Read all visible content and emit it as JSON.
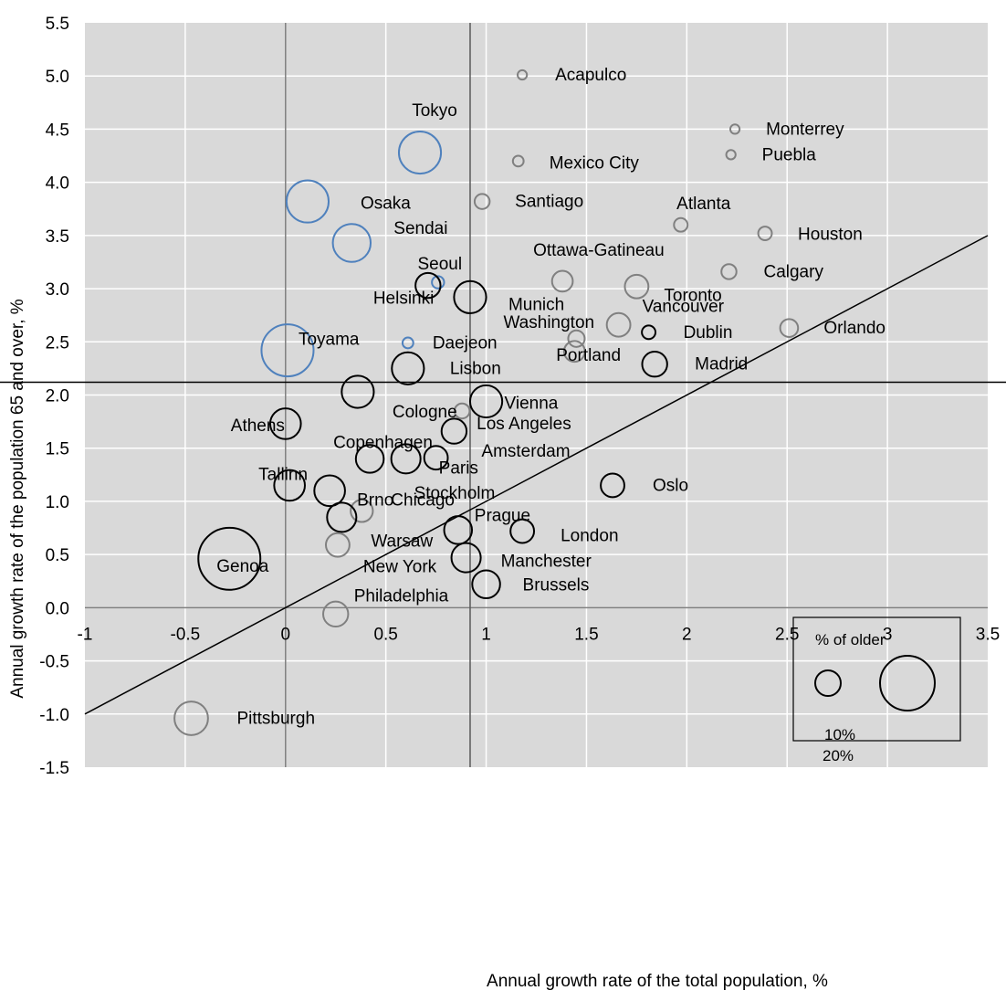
{
  "chart_data": {
    "type": "scatter",
    "subtype": "bubble",
    "xlabel": "Annual growth rate of the total population, %",
    "ylabel": "Annual growth rate of the population 65 and over, %",
    "xlim": [
      -1,
      3.5
    ],
    "ylim": [
      -1.5,
      5.5
    ],
    "x_ticks": [
      "-1",
      "-0.5",
      "0",
      "0.5",
      "1",
      "1.5",
      "2",
      "2.5",
      "3",
      "3.5"
    ],
    "y_ticks": [
      "-1.5",
      "-1.0",
      "-0.5",
      "0.0",
      "0.5",
      "1.0",
      "1.5",
      "2.0",
      "2.5",
      "3.0",
      "3.5",
      "4.0",
      "4.5",
      "5.0",
      "5.5"
    ],
    "grid": true,
    "background": "#d9d9d9",
    "reference_lines": {
      "vertical_x": 0.92,
      "horizontal_y": 2.12,
      "diagonal": "y = x"
    },
    "colors": {
      "blue": "#4f81bd",
      "grey": "#808080",
      "black": "#000000"
    },
    "legend": {
      "title": "% of older",
      "entries": [
        "10%",
        "20%"
      ],
      "placement": "bottom-right"
    },
    "points": [
      {
        "name": "Acapulco",
        "x": 1.18,
        "y": 5.01,
        "size": 4,
        "color": "grey"
      },
      {
        "name": "Monterrey",
        "x": 2.24,
        "y": 4.5,
        "size": 4,
        "color": "grey"
      },
      {
        "name": "Puebla",
        "x": 2.22,
        "y": 4.26,
        "size": 4,
        "color": "grey"
      },
      {
        "name": "Mexico City",
        "x": 1.16,
        "y": 4.2,
        "size": 5,
        "color": "grey"
      },
      {
        "name": "Tokyo",
        "x": 0.67,
        "y": 4.28,
        "size": 27,
        "color": "blue"
      },
      {
        "name": "Osaka",
        "x": 0.11,
        "y": 3.82,
        "size": 27,
        "color": "blue"
      },
      {
        "name": "Santiago",
        "x": 0.98,
        "y": 3.82,
        "size": 8,
        "color": "grey"
      },
      {
        "name": "Atlanta",
        "x": 1.97,
        "y": 3.6,
        "size": 7,
        "color": "grey"
      },
      {
        "name": "Houston",
        "x": 2.39,
        "y": 3.52,
        "size": 7,
        "color": "grey"
      },
      {
        "name": "Sendai",
        "x": 0.33,
        "y": 3.43,
        "size": 24,
        "color": "blue"
      },
      {
        "name": "Seoul",
        "x": 0.76,
        "y": 3.06,
        "size": 6,
        "color": "blue"
      },
      {
        "name": "Ottawa-Gatineau",
        "x": 1.38,
        "y": 3.07,
        "size": 12,
        "color": "grey"
      },
      {
        "name": "Calgary",
        "x": 2.21,
        "y": 3.16,
        "size": 8,
        "color": "grey"
      },
      {
        "name": "Toronto",
        "x": 1.75,
        "y": 3.02,
        "size": 14,
        "color": "grey"
      },
      {
        "name": "Helsinki",
        "x": 0.71,
        "y": 3.03,
        "size": 15,
        "color": "black"
      },
      {
        "name": "Munich",
        "x": 0.92,
        "y": 2.92,
        "size": 20,
        "color": "black"
      },
      {
        "name": "Toyama",
        "x": 0.01,
        "y": 2.42,
        "size": 34,
        "color": "blue"
      },
      {
        "name": "Vancouver",
        "x": 1.66,
        "y": 2.66,
        "size": 14,
        "color": "grey"
      },
      {
        "name": "Washington",
        "x": 1.45,
        "y": 2.53,
        "size": 9,
        "color": "grey"
      },
      {
        "name": "Dublin",
        "x": 1.81,
        "y": 2.59,
        "size": 7,
        "color": "black"
      },
      {
        "name": "Orlando",
        "x": 2.51,
        "y": 2.63,
        "size": 10,
        "color": "grey"
      },
      {
        "name": "Daejeon",
        "x": 0.61,
        "y": 2.49,
        "size": 5,
        "color": "blue"
      },
      {
        "name": "Portland",
        "x": 1.44,
        "y": 2.41,
        "size": 12,
        "color": "grey"
      },
      {
        "name": "Madrid",
        "x": 1.84,
        "y": 2.29,
        "size": 15,
        "color": "black"
      },
      {
        "name": "Lisbon",
        "x": 0.61,
        "y": 2.25,
        "size": 20,
        "color": "black"
      },
      {
        "name": "Cologne",
        "x": 0.36,
        "y": 2.03,
        "size": 20,
        "color": "black"
      },
      {
        "name": "Vienna",
        "x": 1.0,
        "y": 1.94,
        "size": 20,
        "color": "black"
      },
      {
        "name": "Los Angeles",
        "x": 0.88,
        "y": 1.85,
        "size": 8,
        "color": "grey"
      },
      {
        "name": "Athens",
        "x": 0.0,
        "y": 1.73,
        "size": 19,
        "color": "black"
      },
      {
        "name": "Amsterdam",
        "x": 0.84,
        "y": 1.66,
        "size": 15,
        "color": "black"
      },
      {
        "name": "Copenhagen",
        "x": 0.42,
        "y": 1.4,
        "size": 17,
        "color": "black"
      },
      {
        "name": "Paris",
        "x": 0.6,
        "y": 1.4,
        "size": 18,
        "color": "black"
      },
      {
        "name": "Stockholm",
        "x": 0.75,
        "y": 1.41,
        "size": 14,
        "color": "black"
      },
      {
        "name": "Tallinn",
        "x": 0.02,
        "y": 1.15,
        "size": 19,
        "color": "black"
      },
      {
        "name": "Brno",
        "x": 0.22,
        "y": 1.1,
        "size": 19,
        "color": "black"
      },
      {
        "name": "Oslo",
        "x": 1.63,
        "y": 1.15,
        "size": 14,
        "color": "black"
      },
      {
        "name": "Chicago",
        "x": 0.38,
        "y": 0.91,
        "size": 13,
        "color": "grey"
      },
      {
        "name": "Warsaw",
        "x": 0.28,
        "y": 0.85,
        "size": 18,
        "color": "black"
      },
      {
        "name": "Prague",
        "x": 0.86,
        "y": 0.73,
        "size": 17,
        "color": "black"
      },
      {
        "name": "London",
        "x": 1.18,
        "y": 0.72,
        "size": 14,
        "color": "black"
      },
      {
        "name": "Genoa",
        "x": -0.28,
        "y": 0.46,
        "size": 41,
        "color": "black"
      },
      {
        "name": "New York",
        "x": 0.26,
        "y": 0.59,
        "size": 14,
        "color": "grey"
      },
      {
        "name": "Manchester",
        "x": 0.9,
        "y": 0.47,
        "size": 18,
        "color": "black"
      },
      {
        "name": "Brussels",
        "x": 1.0,
        "y": 0.22,
        "size": 17,
        "color": "black"
      },
      {
        "name": "Philadelphia",
        "x": 0.25,
        "y": -0.06,
        "size": 15,
        "color": "grey"
      },
      {
        "name": "Pittsburgh",
        "x": -0.47,
        "y": -1.04,
        "size": 21,
        "color": "grey"
      }
    ]
  }
}
